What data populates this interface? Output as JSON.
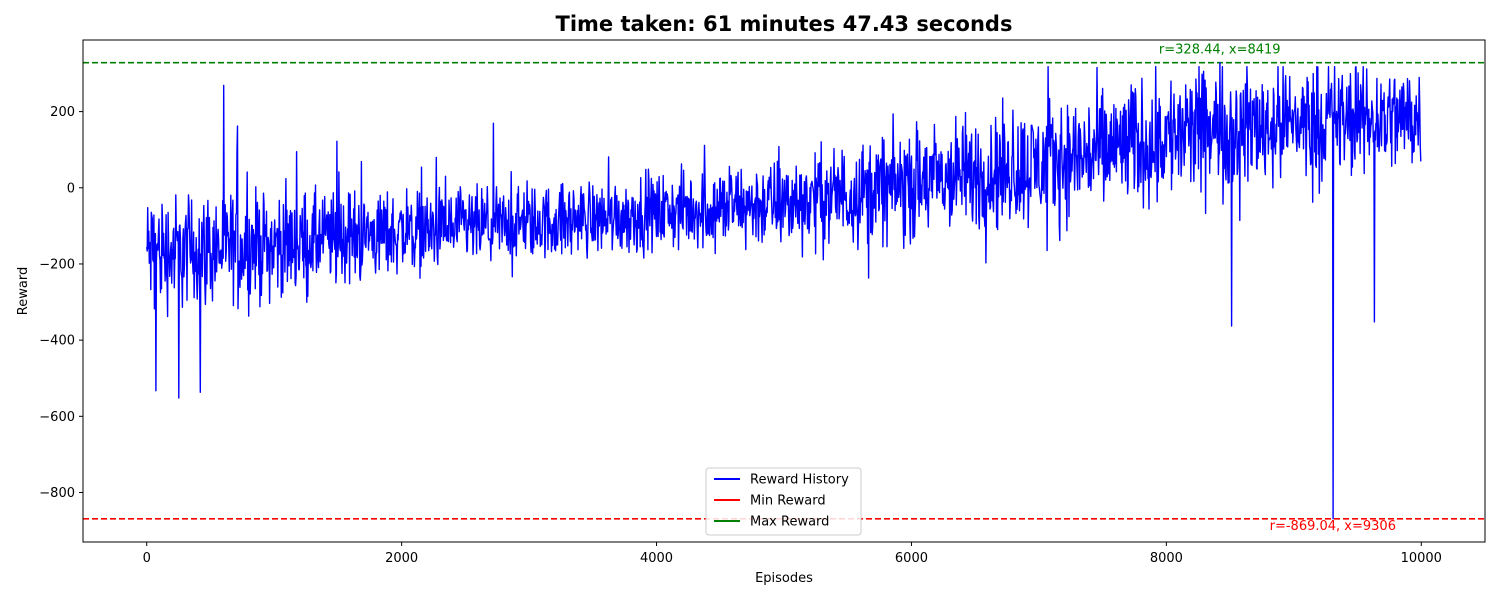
{
  "chart_data": {
    "type": "line",
    "title": "Time taken: 61 minutes 47.43 seconds",
    "xlabel": "Episodes",
    "ylabel": "Reward",
    "xlim": [
      -500,
      10500
    ],
    "ylim": [
      -930,
      388
    ],
    "xticks": [
      0,
      2000,
      4000,
      6000,
      8000,
      10000
    ],
    "yticks": [
      -800,
      -600,
      -400,
      -200,
      0,
      200
    ],
    "grid": false,
    "legend_position": "bottom-center",
    "colors": {
      "reward": "#0000ff",
      "min": "#ff0000",
      "max": "#008000"
    },
    "series": [
      {
        "name": "Reward History",
        "x_start": 0,
        "x_end": 9999,
        "trend_x": [
          0,
          1000,
          2000,
          3000,
          4000,
          5000,
          6000,
          7000,
          8000,
          9000,
          9999
        ],
        "trend_mean": [
          -170,
          -150,
          -115,
          -95,
          -65,
          -40,
          10,
          60,
          135,
          175,
          185
        ],
        "trend_spread": [
          80,
          70,
          55,
          50,
          50,
          60,
          75,
          80,
          85,
          80,
          70
        ],
        "notable_points": [
          {
            "x": 70,
            "y": -533
          },
          {
            "x": 250,
            "y": -552
          },
          {
            "x": 420,
            "y": -537
          },
          {
            "x": 710,
            "y": 162
          },
          {
            "x": 1490,
            "y": 122
          },
          {
            "x": 8419,
            "y": 328.44
          },
          {
            "x": 8510,
            "y": -363
          },
          {
            "x": 9306,
            "y": -869.04
          },
          {
            "x": 9630,
            "y": -352
          }
        ]
      },
      {
        "name": "Min Reward",
        "y": -869.04
      },
      {
        "name": "Max Reward",
        "y": 328.44
      }
    ],
    "annotations": [
      {
        "text": "r=328.44, x=8419",
        "x": 8419,
        "y": 328.44,
        "color": "#008000"
      },
      {
        "text": "r=-869.04, x=9306",
        "x": 9306,
        "y": -869.04,
        "color": "#ff0000"
      }
    ]
  }
}
